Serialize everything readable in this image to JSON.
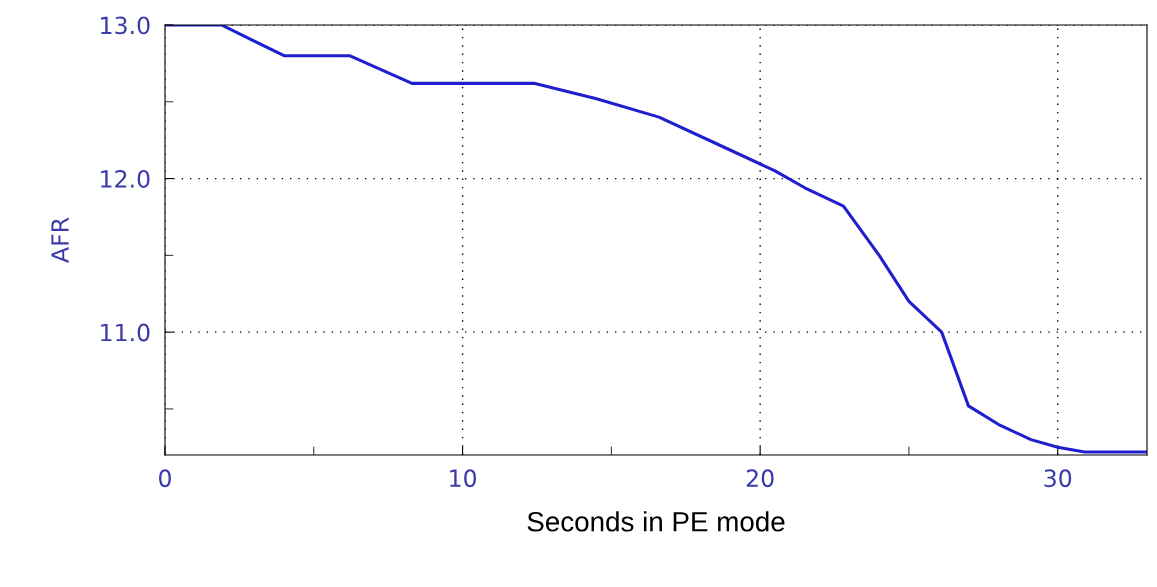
{
  "chart_data": {
    "type": "line",
    "xlabel": "Seconds in PE mode",
    "ylabel": "AFR",
    "x": [
      0,
      1.9,
      4.0,
      6.2,
      8.3,
      12.4,
      14.5,
      16.6,
      18.5,
      20.5,
      21.5,
      22.8,
      24.0,
      25.0,
      26.1,
      27.0,
      28.0,
      29.1,
      30.0,
      30.9,
      33.0
    ],
    "series": [
      {
        "color": "#1f1fd0",
        "values": [
          13.0,
          13.0,
          12.8,
          12.8,
          12.62,
          12.62,
          12.52,
          12.4,
          12.23,
          12.05,
          11.94,
          11.82,
          11.5,
          11.2,
          11.0,
          10.52,
          10.4,
          10.3,
          10.25,
          10.22,
          10.22
        ]
      }
    ],
    "xlim": [
      0,
      33
    ],
    "ylim": [
      10.2,
      13.0
    ],
    "xticks": [
      0,
      {
        "value": 5,
        "label": null
      },
      10,
      {
        "value": 15,
        "label": null
      },
      20,
      {
        "value": 25,
        "label": null
      },
      30
    ],
    "yticks": [
      {
        "value": 10.5,
        "label": null
      },
      {
        "value": 11.0,
        "label": "11.0"
      },
      {
        "value": 11.5,
        "label": null
      },
      {
        "value": 12.0,
        "label": "12.0"
      },
      {
        "value": 12.5,
        "label": null
      },
      {
        "value": 13.0,
        "label": "13.0"
      }
    ],
    "grid": true,
    "marker": "none",
    "line_style": "solid"
  }
}
